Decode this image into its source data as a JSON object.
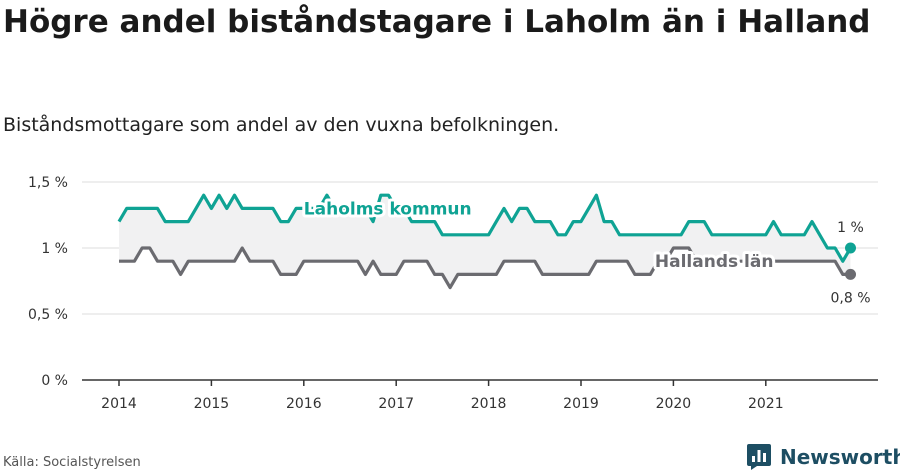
{
  "header": {
    "title": "Högre andel biståndstagare i Laholm än i Halland",
    "subtitle": "Biståndsmottagare som andel av den vuxna befolkningen."
  },
  "footer": {
    "source": "Källa: Socialstyrelsen",
    "brand": "Newsworthy",
    "brand_icon": "bar-chart-logo-icon"
  },
  "chart_data": {
    "type": "line",
    "title": "Högre andel biståndstagare i Laholm än i Halland",
    "subtitle": "Biståndsmottagare som andel av den vuxna befolkningen.",
    "xlabel": "",
    "ylabel": "",
    "x_start": "2014-01",
    "x_frequency": "monthly",
    "x_ticks": [
      "2014",
      "2015",
      "2016",
      "2017",
      "2018",
      "2019",
      "2020",
      "2021"
    ],
    "y_ticks": [
      {
        "value": 0,
        "label": "0 %"
      },
      {
        "value": 0.5,
        "label": "0,5 %"
      },
      {
        "value": 1,
        "label": "1 %"
      },
      {
        "value": 1.5,
        "label": "1,5 %"
      }
    ],
    "ylim": [
      0,
      1.5
    ],
    "grid": true,
    "legend": "inline labels",
    "series": [
      {
        "name": "Laholms kommun",
        "color": "#0fa394",
        "label_position": [
          2016,
          1.3
        ],
        "end_label": "1 %",
        "values": [
          1.2,
          1.3,
          1.3,
          1.3,
          1.3,
          1.3,
          1.2,
          1.2,
          1.2,
          1.2,
          1.3,
          1.4,
          1.3,
          1.4,
          1.3,
          1.4,
          1.3,
          1.3,
          1.3,
          1.3,
          1.3,
          1.2,
          1.2,
          1.3,
          1.3,
          1.3,
          1.3,
          1.4,
          1.3,
          1.3,
          1.3,
          1.3,
          1.3,
          1.2,
          1.4,
          1.4,
          1.3,
          1.3,
          1.2,
          1.2,
          1.2,
          1.2,
          1.1,
          1.1,
          1.1,
          1.1,
          1.1,
          1.1,
          1.1,
          1.2,
          1.3,
          1.2,
          1.3,
          1.3,
          1.2,
          1.2,
          1.2,
          1.1,
          1.1,
          1.2,
          1.2,
          1.3,
          1.4,
          1.2,
          1.2,
          1.1,
          1.1,
          1.1,
          1.1,
          1.1,
          1.1,
          1.1,
          1.1,
          1.1,
          1.2,
          1.2,
          1.2,
          1.1,
          1.1,
          1.1,
          1.1,
          1.1,
          1.1,
          1.1,
          1.1,
          1.2,
          1.1,
          1.1,
          1.1,
          1.1,
          1.2,
          1.1,
          1.0,
          1.0,
          0.9,
          1.0
        ]
      },
      {
        "name": "Hallands län",
        "color": "#6b6b70",
        "label_position": [
          2019.8,
          0.9
        ],
        "end_label": "0,8 %",
        "values": [
          0.9,
          0.9,
          0.9,
          1.0,
          1.0,
          0.9,
          0.9,
          0.9,
          0.8,
          0.9,
          0.9,
          0.9,
          0.9,
          0.9,
          0.9,
          0.9,
          1.0,
          0.9,
          0.9,
          0.9,
          0.9,
          0.8,
          0.8,
          0.8,
          0.9,
          0.9,
          0.9,
          0.9,
          0.9,
          0.9,
          0.9,
          0.9,
          0.8,
          0.9,
          0.8,
          0.8,
          0.8,
          0.9,
          0.9,
          0.9,
          0.9,
          0.8,
          0.8,
          0.7,
          0.8,
          0.8,
          0.8,
          0.8,
          0.8,
          0.8,
          0.9,
          0.9,
          0.9,
          0.9,
          0.9,
          0.8,
          0.8,
          0.8,
          0.8,
          0.8,
          0.8,
          0.8,
          0.9,
          0.9,
          0.9,
          0.9,
          0.9,
          0.8,
          0.8,
          0.8,
          0.9,
          0.9,
          1.0,
          1.0,
          1.0,
          0.9,
          0.9,
          0.9,
          0.9,
          0.9,
          0.9,
          0.9,
          0.9,
          0.9,
          0.9,
          0.9,
          0.9,
          0.9,
          0.9,
          0.9,
          0.9,
          0.9,
          0.9,
          0.9,
          0.8,
          0.8
        ]
      }
    ]
  }
}
